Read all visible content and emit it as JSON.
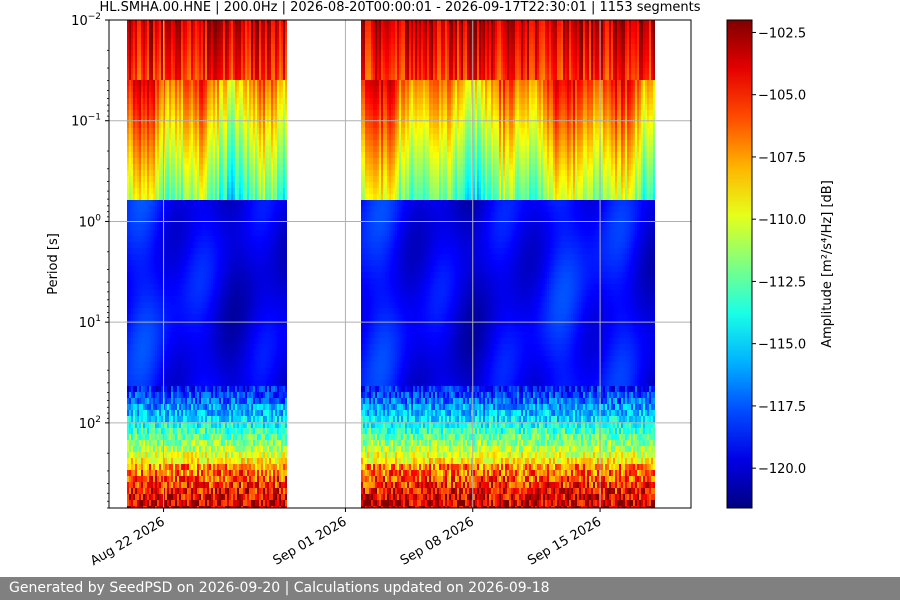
{
  "chart_data": {
    "type": "heatmap",
    "title": "HL.SMHA.00.HNE | 200.0Hz | 2026-08-20T00:00:01 - 2026-09-17T22:30:01 | 1153 segments",
    "ylabel": "Period [s]",
    "xlabel": "",
    "colorbar_label": "Amplitude [m²/s⁴/Hz] [dB]",
    "y_scale": "log",
    "y_inverted": true,
    "y_range": [
      0.01,
      700
    ],
    "y_ticks": [
      {
        "value": 0.01,
        "base": "10",
        "exp": "−2"
      },
      {
        "value": 0.1,
        "base": "10",
        "exp": "−1"
      },
      {
        "value": 1,
        "base": "10",
        "exp": "0"
      },
      {
        "value": 10,
        "base": "10",
        "exp": "1"
      },
      {
        "value": 100,
        "base": "10",
        "exp": "2"
      }
    ],
    "x_range": [
      "2026-08-19T00:00:00",
      "2026-09-20T00:00:00"
    ],
    "x_data_range": [
      "2026-08-20T00:00:01",
      "2026-09-17T22:30:01"
    ],
    "x_ticks": [
      {
        "date": "2026-08-22",
        "label": "Aug 22 2026"
      },
      {
        "date": "2026-09-01",
        "label": "Sep 01 2026"
      },
      {
        "date": "2026-09-08",
        "label": "Sep 08 2026"
      },
      {
        "date": "2026-09-15",
        "label": "Sep 15 2026"
      }
    ],
    "data_gaps": [
      {
        "start": "2026-08-28T18:00:00",
        "end": "2026-09-01T00:00:00"
      },
      {
        "start": "2026-09-01T00:00:00",
        "end": "2026-09-01T21:00:00"
      }
    ],
    "colorbar": {
      "min": -121.6,
      "max": -102,
      "ticks": [
        -102.5,
        -105.0,
        -107.5,
        -110.0,
        -112.5,
        -115.0,
        -117.5,
        -120.0
      ],
      "tick_labels": [
        "−102.5",
        "−105.0",
        "−107.5",
        "−110.0",
        "−112.5",
        "−115.0",
        "−117.5",
        "−120.0"
      ],
      "colormap": "jet"
    },
    "grid": true
  },
  "footer": {
    "text": "Generated by SeedPSD on 2026-09-20 | Calculations updated on 2026-09-18"
  },
  "colors": {
    "footer_bg": "#808080",
    "grid": "#b0b0b0"
  }
}
